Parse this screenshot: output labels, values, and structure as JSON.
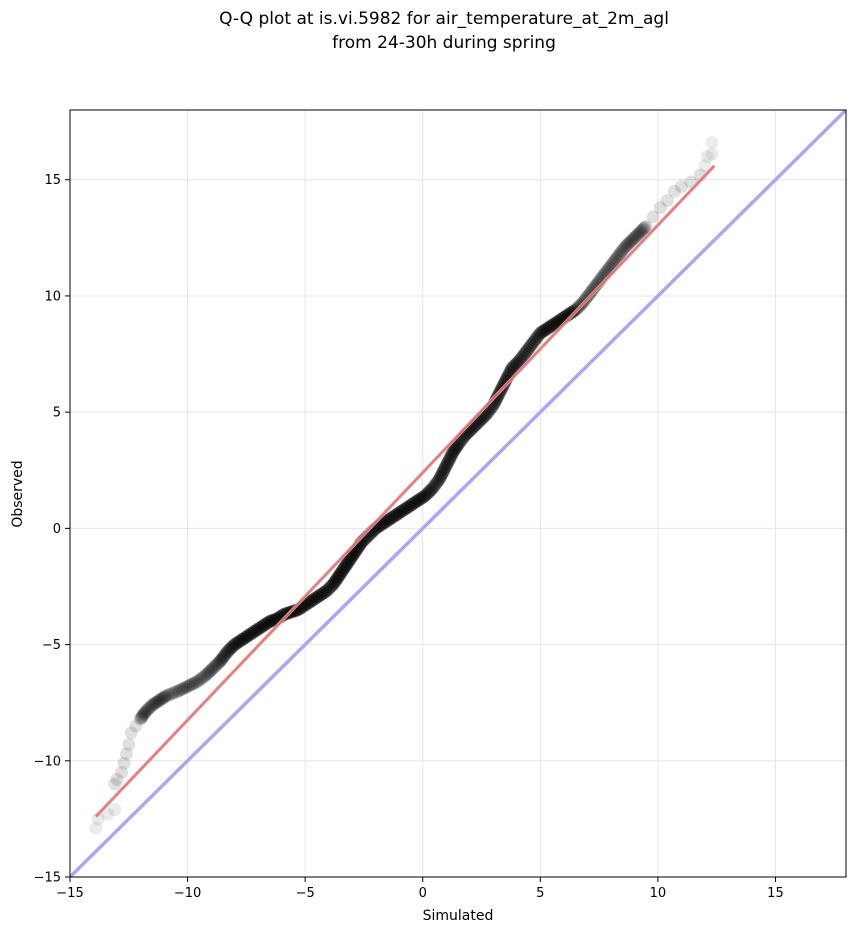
{
  "chart_data": {
    "type": "scatter",
    "title_lines": [
      "Q-Q plot at is.vi.5982 for air_temperature_at_2m_agl",
      "from 24-30h during spring"
    ],
    "xlabel": "Simulated",
    "ylabel": "Observed",
    "xlim": [
      -15,
      18
    ],
    "ylim": [
      -15,
      18
    ],
    "xticks": [
      -15,
      -10,
      -5,
      0,
      5,
      10,
      15
    ],
    "yticks": [
      -15,
      -10,
      -5,
      0,
      5,
      10,
      15
    ],
    "xtick_labels": [
      "−15",
      "−10",
      "−5",
      "0",
      "5",
      "10",
      "15"
    ],
    "ytick_labels": [
      "−15",
      "−10",
      "−5",
      "0",
      "5",
      "10",
      "15"
    ],
    "grid": true,
    "qq_points": [
      [
        -13.9,
        -12.9
      ],
      [
        -13.8,
        -12.5
      ],
      [
        -13.4,
        -12.3
      ],
      [
        -13.1,
        -12.1
      ],
      [
        -13.1,
        -11.0
      ],
      [
        -13.0,
        -10.8
      ],
      [
        -12.8,
        -10.5
      ],
      [
        -12.7,
        -10.1
      ],
      [
        -12.6,
        -9.7
      ],
      [
        -12.5,
        -9.3
      ],
      [
        -12.4,
        -8.8
      ],
      [
        -12.2,
        -8.5
      ],
      [
        -12.0,
        -8.2
      ],
      [
        -11.8,
        -7.9
      ],
      [
        -11.5,
        -7.6
      ],
      [
        -11.2,
        -7.4
      ],
      [
        -10.9,
        -7.2
      ],
      [
        -10.4,
        -7.0
      ],
      [
        -10.0,
        -6.8
      ],
      [
        -9.6,
        -6.6
      ],
      [
        -9.2,
        -6.3
      ],
      [
        -8.9,
        -6.0
      ],
      [
        -8.6,
        -5.7
      ],
      [
        -8.3,
        -5.3
      ],
      [
        -8.0,
        -5.0
      ],
      [
        -7.7,
        -4.8
      ],
      [
        -7.4,
        -4.6
      ],
      [
        -7.1,
        -4.4
      ],
      [
        -6.8,
        -4.2
      ],
      [
        -6.5,
        -4.0
      ],
      [
        -6.2,
        -3.9
      ],
      [
        -5.9,
        -3.7
      ],
      [
        -5.6,
        -3.6
      ],
      [
        -5.3,
        -3.5
      ],
      [
        -5.0,
        -3.3
      ],
      [
        -4.7,
        -3.1
      ],
      [
        -4.4,
        -2.9
      ],
      [
        -4.1,
        -2.7
      ],
      [
        -3.8,
        -2.4
      ],
      [
        -3.6,
        -2.1
      ],
      [
        -3.4,
        -1.8
      ],
      [
        -3.2,
        -1.5
      ],
      [
        -3.0,
        -1.2
      ],
      [
        -2.8,
        -0.9
      ],
      [
        -2.6,
        -0.6
      ],
      [
        -2.3,
        -0.3
      ],
      [
        -2.0,
        0.0
      ],
      [
        -1.7,
        0.2
      ],
      [
        -1.4,
        0.4
      ],
      [
        -1.1,
        0.6
      ],
      [
        -0.8,
        0.8
      ],
      [
        -0.5,
        1.0
      ],
      [
        -0.2,
        1.2
      ],
      [
        0.1,
        1.4
      ],
      [
        0.4,
        1.7
      ],
      [
        0.7,
        2.1
      ],
      [
        0.9,
        2.5
      ],
      [
        1.1,
        2.9
      ],
      [
        1.3,
        3.3
      ],
      [
        1.5,
        3.6
      ],
      [
        1.8,
        4.0
      ],
      [
        2.1,
        4.3
      ],
      [
        2.4,
        4.6
      ],
      [
        2.7,
        4.9
      ],
      [
        3.0,
        5.3
      ],
      [
        3.2,
        5.7
      ],
      [
        3.4,
        6.1
      ],
      [
        3.6,
        6.5
      ],
      [
        3.8,
        6.9
      ],
      [
        4.1,
        7.2
      ],
      [
        4.4,
        7.6
      ],
      [
        4.7,
        8.0
      ],
      [
        5.0,
        8.4
      ],
      [
        5.3,
        8.6
      ],
      [
        5.6,
        8.8
      ],
      [
        5.9,
        9.0
      ],
      [
        6.2,
        9.2
      ],
      [
        6.5,
        9.4
      ],
      [
        6.8,
        9.7
      ],
      [
        7.1,
        10.1
      ],
      [
        7.4,
        10.5
      ],
      [
        7.7,
        10.9
      ],
      [
        8.0,
        11.3
      ],
      [
        8.3,
        11.7
      ],
      [
        8.6,
        12.1
      ],
      [
        8.9,
        12.4
      ],
      [
        9.2,
        12.7
      ],
      [
        9.5,
        13.0
      ],
      [
        9.8,
        13.4
      ],
      [
        10.1,
        13.8
      ],
      [
        10.4,
        14.1
      ],
      [
        10.7,
        14.5
      ],
      [
        11.0,
        14.7
      ],
      [
        11.4,
        14.9
      ],
      [
        11.8,
        15.2
      ],
      [
        12.0,
        15.6
      ],
      [
        12.1,
        16.0
      ],
      [
        12.3,
        16.1
      ],
      [
        12.3,
        16.6
      ]
    ],
    "fit_line": [
      [
        -13.9,
        -12.4
      ],
      [
        12.4,
        15.6
      ]
    ],
    "identity_line": [
      [
        -15,
        -15
      ],
      [
        18,
        18
      ]
    ],
    "colors": {
      "points": "#000000",
      "fit_line": "#f4a0a0",
      "fit_line_dark": "#8b0000",
      "identity_line": "#a7a9f3",
      "grid": "#e6e6e6",
      "axes": "#000000"
    }
  }
}
